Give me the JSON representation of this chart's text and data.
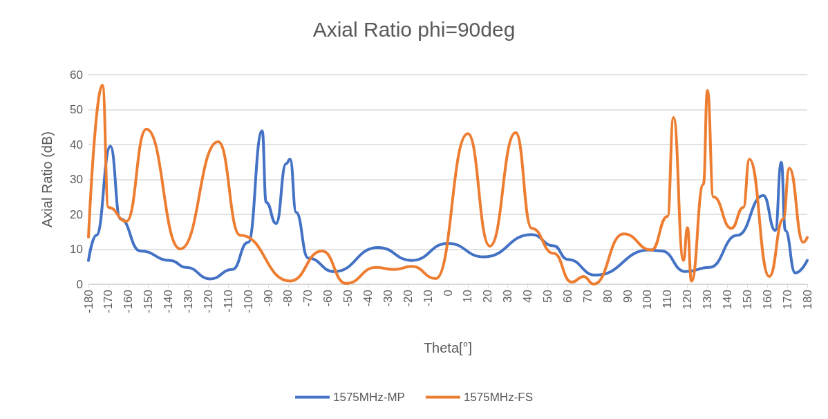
{
  "chart_data": {
    "type": "line",
    "title": "Axial Ratio phi=90deg",
    "xlabel": "Theta[°]",
    "ylabel": "Axial Ratio (dB)",
    "xlim": [
      -180,
      180
    ],
    "xticks": [
      -180,
      -170,
      -160,
      -150,
      -140,
      -130,
      -120,
      -110,
      -100,
      -90,
      -80,
      -70,
      -60,
      -50,
      -40,
      -30,
      -20,
      -10,
      0,
      10,
      20,
      30,
      40,
      50,
      60,
      70,
      80,
      90,
      100,
      110,
      120,
      130,
      140,
      150,
      160,
      170,
      180
    ],
    "ylim": [
      0,
      60
    ],
    "yticks": [
      0,
      10,
      20,
      30,
      40,
      50,
      60
    ],
    "grid": "y",
    "legend": "bottom",
    "marker": "none",
    "line_style": "solid",
    "series": [
      {
        "name": "1575MHz-MP",
        "color": "#4472c4",
        "x": [
          -180,
          -176,
          -169,
          -164,
          -154,
          -139,
          -131,
          -119,
          -108,
          -100,
          -93,
          -91,
          -86,
          -81,
          -79,
          -76,
          -70,
          -57,
          -35,
          -18,
          0,
          18,
          42,
          53,
          60,
          74,
          101,
          107,
          119,
          131,
          145,
          158,
          164,
          167,
          169,
          174,
          180
        ],
        "values": [
          6.8,
          14,
          39.5,
          18.7,
          9.5,
          6.8,
          4.8,
          1.5,
          4.2,
          12,
          43.9,
          23.4,
          17.4,
          34.5,
          35.8,
          20.6,
          7.5,
          3.6,
          10.5,
          6.8,
          11.7,
          7.8,
          14.2,
          11,
          7.1,
          2.6,
          9.8,
          9.5,
          3.6,
          4.8,
          14,
          25.4,
          15.4,
          34.9,
          15.4,
          3.2,
          6.8
        ]
      },
      {
        "name": "1575MHz-FS",
        "color": "#ed7d31",
        "x": [
          -180,
          -173,
          -170,
          -161,
          -151,
          -134,
          -115,
          -104,
          -79,
          -63,
          -51,
          -36,
          -27,
          -18,
          -6,
          10,
          21,
          34,
          42,
          53,
          62,
          68,
          73,
          88,
          102,
          110,
          113,
          118,
          120,
          122,
          128,
          130,
          133,
          142,
          148,
          151,
          161,
          168,
          171,
          178,
          180
        ],
        "values": [
          13.5,
          57,
          22,
          18,
          44.4,
          10.1,
          40.8,
          14,
          0.9,
          9.5,
          0.2,
          4.8,
          4.2,
          5.1,
          1.6,
          43.1,
          10.9,
          43.4,
          16,
          8.8,
          0.6,
          2.2,
          0,
          14.4,
          9.8,
          19.4,
          47.7,
          6.8,
          16.2,
          0.9,
          28.6,
          55.5,
          25,
          16,
          22,
          35.8,
          2.2,
          18.7,
          33.2,
          12,
          13.4
        ]
      }
    ]
  }
}
